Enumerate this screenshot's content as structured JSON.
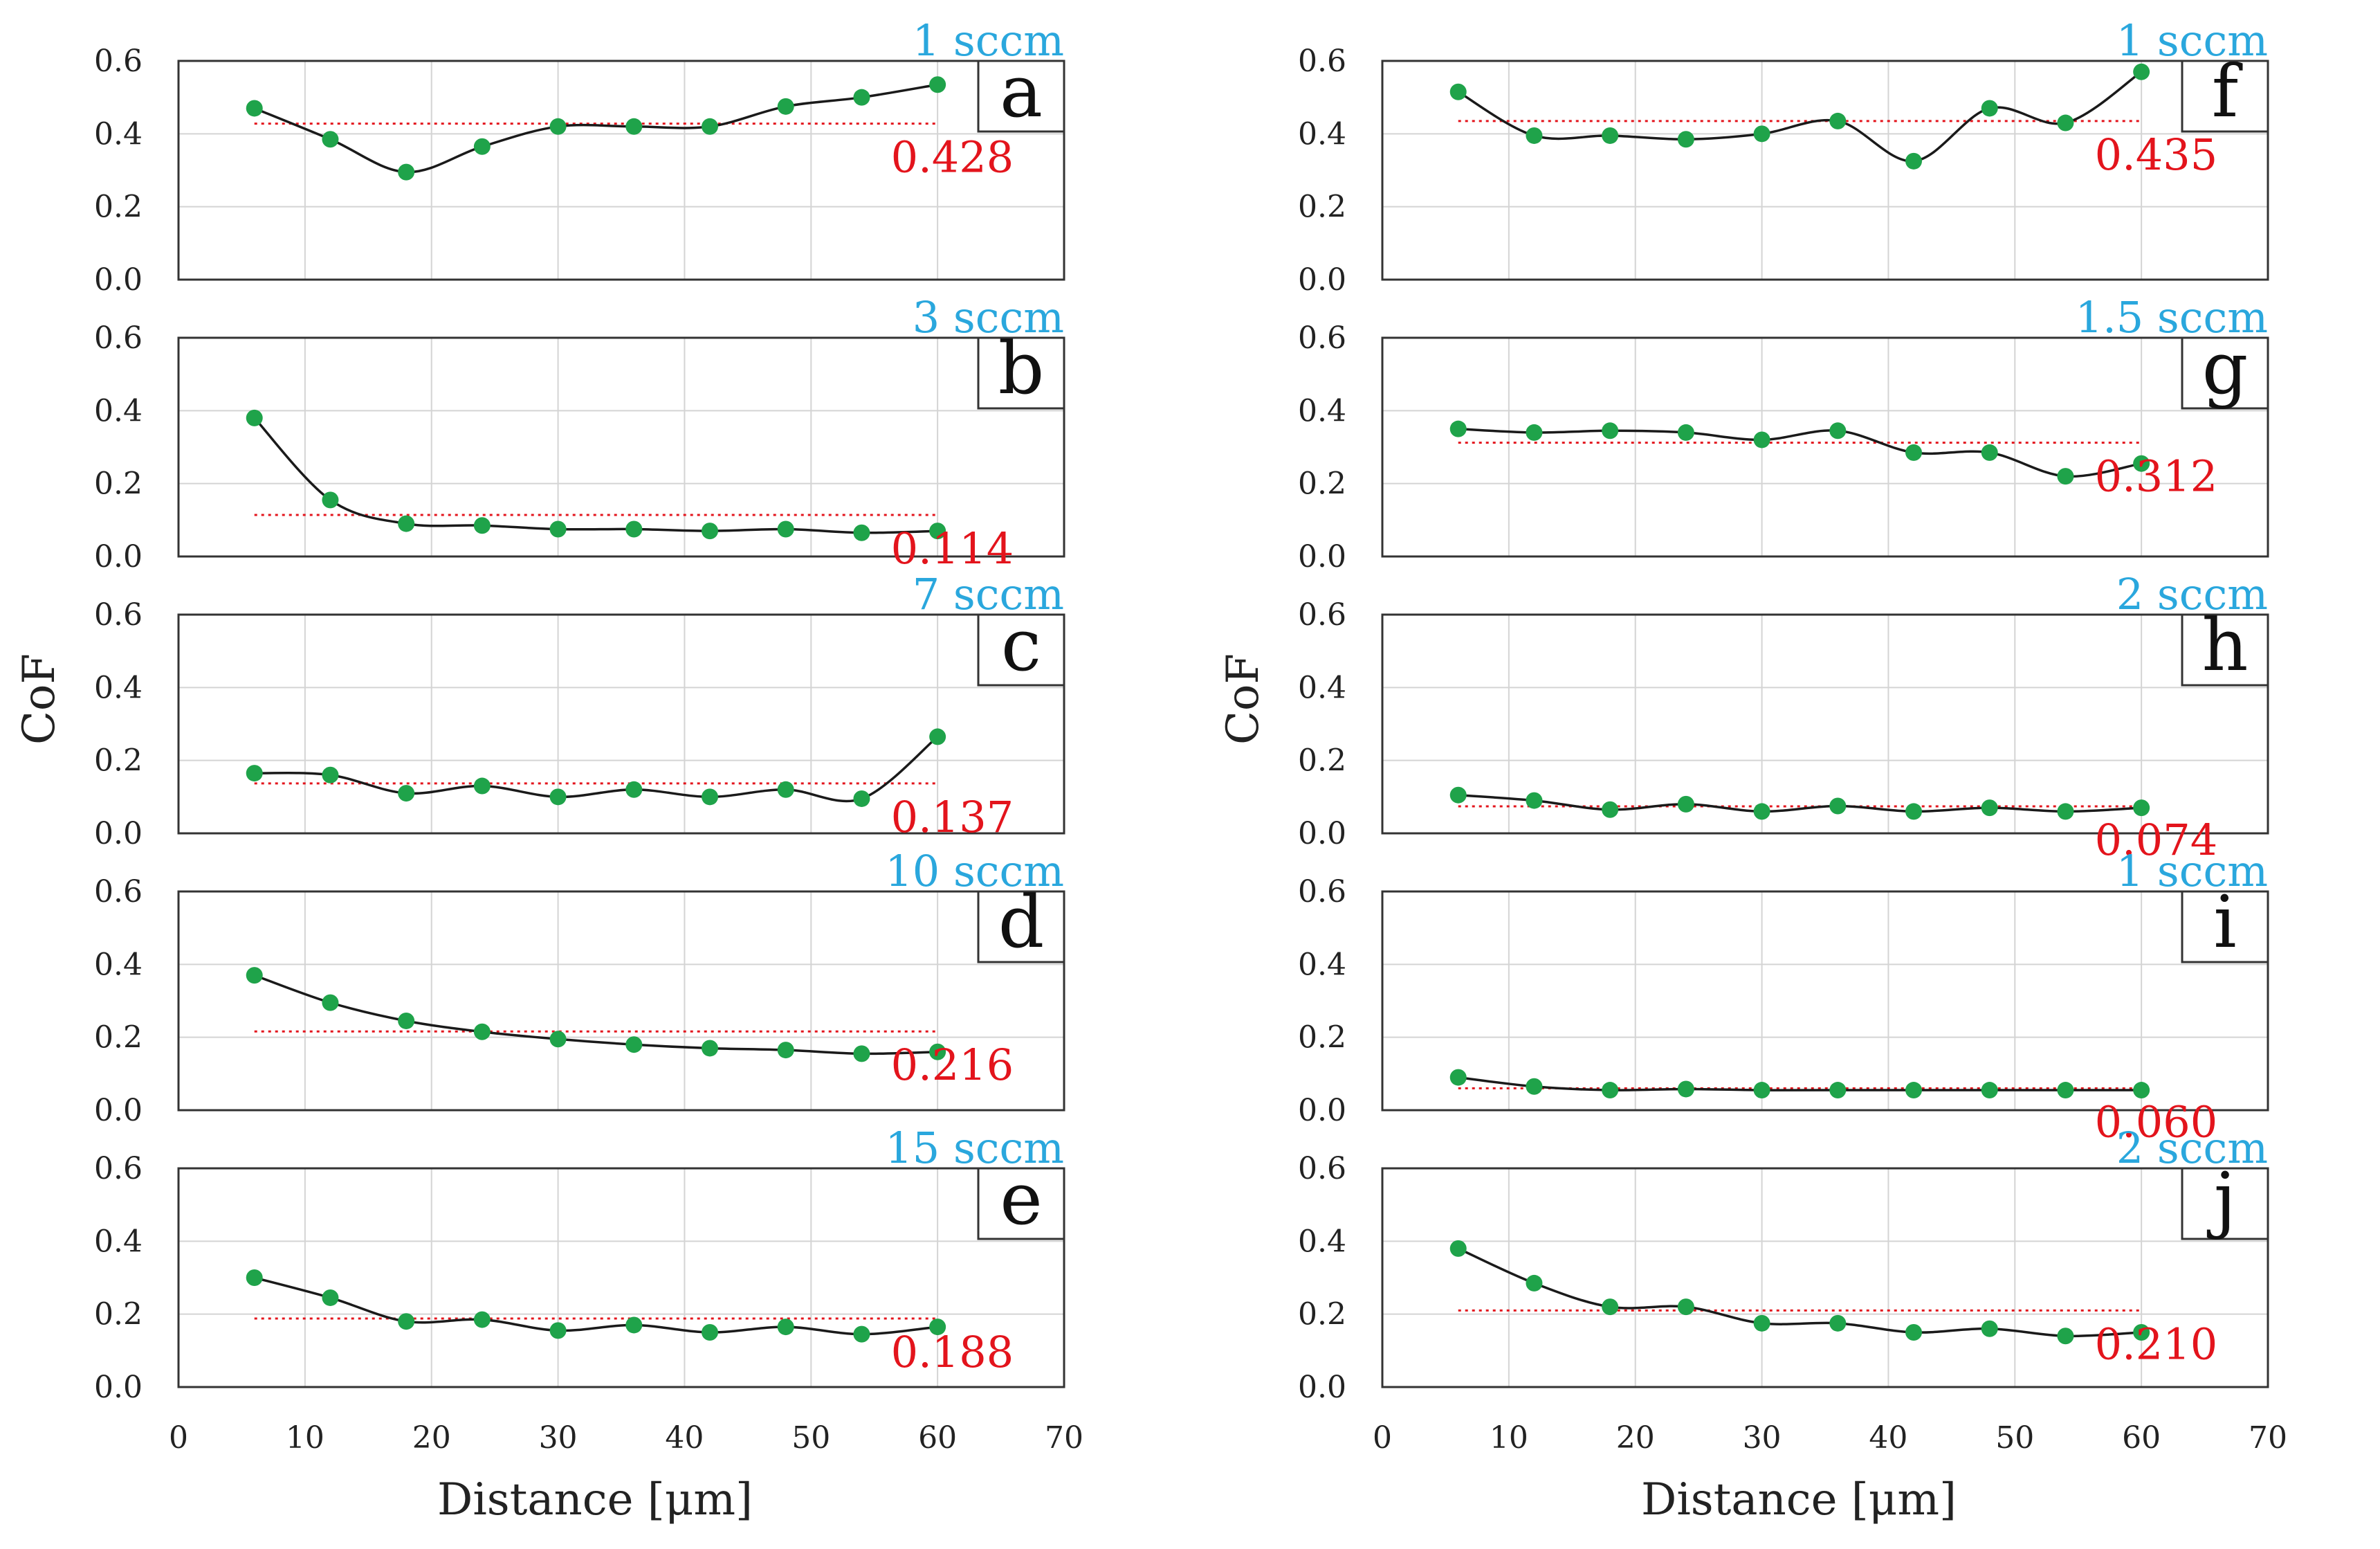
{
  "colors": {
    "flow_label": "#2AA7DD",
    "mean_label": "#E3141C",
    "marker": "#1FA34A",
    "line": "#1a1a1a",
    "grid": "#d4d4d4",
    "frame": "#333333"
  },
  "chart_data": [
    {
      "id": "a",
      "type": "line",
      "flow": "1 sccm",
      "mean": 0.428,
      "mean_label": "0.428",
      "x": [
        6,
        12,
        18,
        24,
        30,
        36,
        42,
        48,
        54,
        60
      ],
      "values": [
        0.47,
        0.385,
        0.295,
        0.365,
        0.42,
        0.42,
        0.42,
        0.475,
        0.5,
        0.535
      ],
      "xlim": [
        0,
        70
      ],
      "ylim": [
        0,
        0.6
      ],
      "xticks": [
        "0",
        "10",
        "20",
        "30",
        "40",
        "50",
        "60",
        "70"
      ],
      "yticks": [
        "0.0",
        "0.2",
        "0.4",
        "0.6"
      ],
      "grid": true
    },
    {
      "id": "b",
      "type": "line",
      "flow": "3 sccm",
      "mean": 0.114,
      "mean_label": "0.114",
      "x": [
        6,
        12,
        18,
        24,
        30,
        36,
        42,
        48,
        54,
        60
      ],
      "values": [
        0.38,
        0.155,
        0.09,
        0.085,
        0.075,
        0.075,
        0.07,
        0.075,
        0.065,
        0.07
      ],
      "xlim": [
        0,
        70
      ],
      "ylim": [
        0,
        0.6
      ],
      "xticks": [
        "0",
        "10",
        "20",
        "30",
        "40",
        "50",
        "60",
        "70"
      ],
      "yticks": [
        "0.0",
        "0.2",
        "0.4",
        "0.6"
      ],
      "grid": true
    },
    {
      "id": "c",
      "type": "line",
      "flow": "7 sccm",
      "mean": 0.137,
      "mean_label": "0.137",
      "x": [
        6,
        12,
        18,
        24,
        30,
        36,
        42,
        48,
        54,
        60
      ],
      "values": [
        0.165,
        0.16,
        0.11,
        0.13,
        0.1,
        0.12,
        0.1,
        0.12,
        0.095,
        0.265
      ],
      "xlim": [
        0,
        70
      ],
      "ylim": [
        0,
        0.6
      ],
      "xticks": [
        "0",
        "10",
        "20",
        "30",
        "40",
        "50",
        "60",
        "70"
      ],
      "yticks": [
        "0.0",
        "0.2",
        "0.4",
        "0.6"
      ],
      "grid": true
    },
    {
      "id": "d",
      "type": "line",
      "flow": "10 sccm",
      "mean": 0.216,
      "mean_label": "0.216",
      "x": [
        6,
        12,
        18,
        24,
        30,
        36,
        42,
        48,
        54,
        60
      ],
      "values": [
        0.37,
        0.295,
        0.245,
        0.215,
        0.195,
        0.18,
        0.17,
        0.165,
        0.155,
        0.16
      ],
      "xlim": [
        0,
        70
      ],
      "ylim": [
        0,
        0.6
      ],
      "xticks": [
        "0",
        "10",
        "20",
        "30",
        "40",
        "50",
        "60",
        "70"
      ],
      "yticks": [
        "0.0",
        "0.2",
        "0.4",
        "0.6"
      ],
      "grid": true
    },
    {
      "id": "e",
      "type": "line",
      "flow": "15 sccm",
      "mean": 0.188,
      "mean_label": "0.188",
      "x": [
        6,
        12,
        18,
        24,
        30,
        36,
        42,
        48,
        54,
        60
      ],
      "values": [
        0.3,
        0.245,
        0.18,
        0.185,
        0.155,
        0.17,
        0.15,
        0.165,
        0.145,
        0.165
      ],
      "xlim": [
        0,
        70
      ],
      "ylim": [
        0,
        0.6
      ],
      "xticks": [
        "0",
        "10",
        "20",
        "30",
        "40",
        "50",
        "60",
        "70"
      ],
      "yticks": [
        "0.0",
        "0.2",
        "0.4",
        "0.6"
      ],
      "grid": true
    },
    {
      "id": "f",
      "type": "line",
      "flow": "1 sccm",
      "mean": 0.435,
      "mean_label": "0.435",
      "x": [
        6,
        12,
        18,
        24,
        30,
        36,
        42,
        48,
        54,
        60
      ],
      "values": [
        0.515,
        0.395,
        0.395,
        0.385,
        0.4,
        0.435,
        0.325,
        0.47,
        0.43,
        0.57
      ],
      "xlim": [
        0,
        70
      ],
      "ylim": [
        0,
        0.6
      ],
      "xticks": [
        "0",
        "10",
        "20",
        "30",
        "40",
        "50",
        "60",
        "70"
      ],
      "yticks": [
        "0.0",
        "0.2",
        "0.4",
        "0.6"
      ],
      "grid": true
    },
    {
      "id": "g",
      "type": "line",
      "flow": "1.5 sccm",
      "mean": 0.312,
      "mean_label": "0.312",
      "x": [
        6,
        12,
        18,
        24,
        30,
        36,
        42,
        48,
        54,
        60
      ],
      "values": [
        0.35,
        0.34,
        0.345,
        0.34,
        0.32,
        0.345,
        0.285,
        0.285,
        0.22,
        0.255
      ],
      "xlim": [
        0,
        70
      ],
      "ylim": [
        0,
        0.6
      ],
      "xticks": [
        "0",
        "10",
        "20",
        "30",
        "40",
        "50",
        "60",
        "70"
      ],
      "yticks": [
        "0.0",
        "0.2",
        "0.4",
        "0.6"
      ],
      "grid": true
    },
    {
      "id": "h",
      "type": "line",
      "flow": "2 sccm",
      "mean": 0.074,
      "mean_label": "0.074",
      "x": [
        6,
        12,
        18,
        24,
        30,
        36,
        42,
        48,
        54,
        60
      ],
      "values": [
        0.105,
        0.09,
        0.065,
        0.08,
        0.06,
        0.075,
        0.06,
        0.07,
        0.06,
        0.07
      ],
      "xlim": [
        0,
        70
      ],
      "ylim": [
        0,
        0.6
      ],
      "xticks": [
        "0",
        "10",
        "20",
        "30",
        "40",
        "50",
        "60",
        "70"
      ],
      "yticks": [
        "0.0",
        "0.2",
        "0.4",
        "0.6"
      ],
      "grid": true
    },
    {
      "id": "i",
      "type": "line",
      "flow": "1 sccm",
      "mean": 0.06,
      "mean_label": "0.060",
      "x": [
        6,
        12,
        18,
        24,
        30,
        36,
        42,
        48,
        54,
        60
      ],
      "values": [
        0.09,
        0.065,
        0.055,
        0.058,
        0.055,
        0.055,
        0.055,
        0.055,
        0.055,
        0.055
      ],
      "xlim": [
        0,
        70
      ],
      "ylim": [
        0,
        0.6
      ],
      "xticks": [
        "0",
        "10",
        "20",
        "30",
        "40",
        "50",
        "60",
        "70"
      ],
      "yticks": [
        "0.0",
        "0.2",
        "0.4",
        "0.6"
      ],
      "grid": true
    },
    {
      "id": "j",
      "type": "line",
      "flow": "2 sccm",
      "mean": 0.21,
      "mean_label": "0.210",
      "x": [
        6,
        12,
        18,
        24,
        30,
        36,
        42,
        48,
        54,
        60
      ],
      "values": [
        0.38,
        0.285,
        0.22,
        0.22,
        0.175,
        0.175,
        0.15,
        0.16,
        0.14,
        0.15
      ],
      "xlim": [
        0,
        70
      ],
      "ylim": [
        0,
        0.6
      ],
      "xticks": [
        "0",
        "10",
        "20",
        "30",
        "40",
        "50",
        "60",
        "70"
      ],
      "yticks": [
        "0.0",
        "0.2",
        "0.4",
        "0.6"
      ],
      "grid": true
    }
  ],
  "axes": {
    "ylabel_left": "CoF",
    "ylabel_right": "CoF",
    "xlabel_left": "Distance [μm]",
    "xlabel_right": "Distance [μm]"
  }
}
